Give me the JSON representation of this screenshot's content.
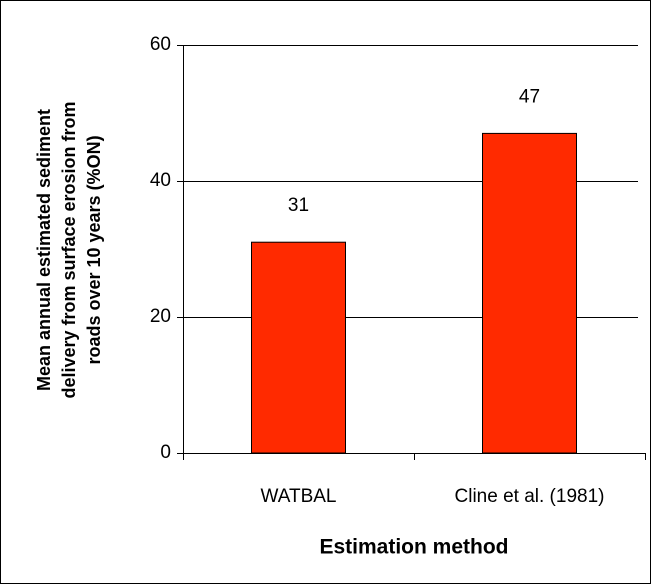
{
  "chart_data": {
    "type": "bar",
    "y_label": [
      "Mean annual estimated sediment",
      "delivery from surface erosion from",
      "roads over 10 years (%ON)"
    ],
    "x_label": "Estimation method",
    "categories": [
      "WATBAL",
      "Cline et al. (1981)"
    ],
    "values": [
      31,
      47
    ],
    "color": "#ff2a00",
    "ylim": [
      0,
      60
    ],
    "yticks": [
      0,
      20,
      40,
      60
    ],
    "grid": true
  }
}
